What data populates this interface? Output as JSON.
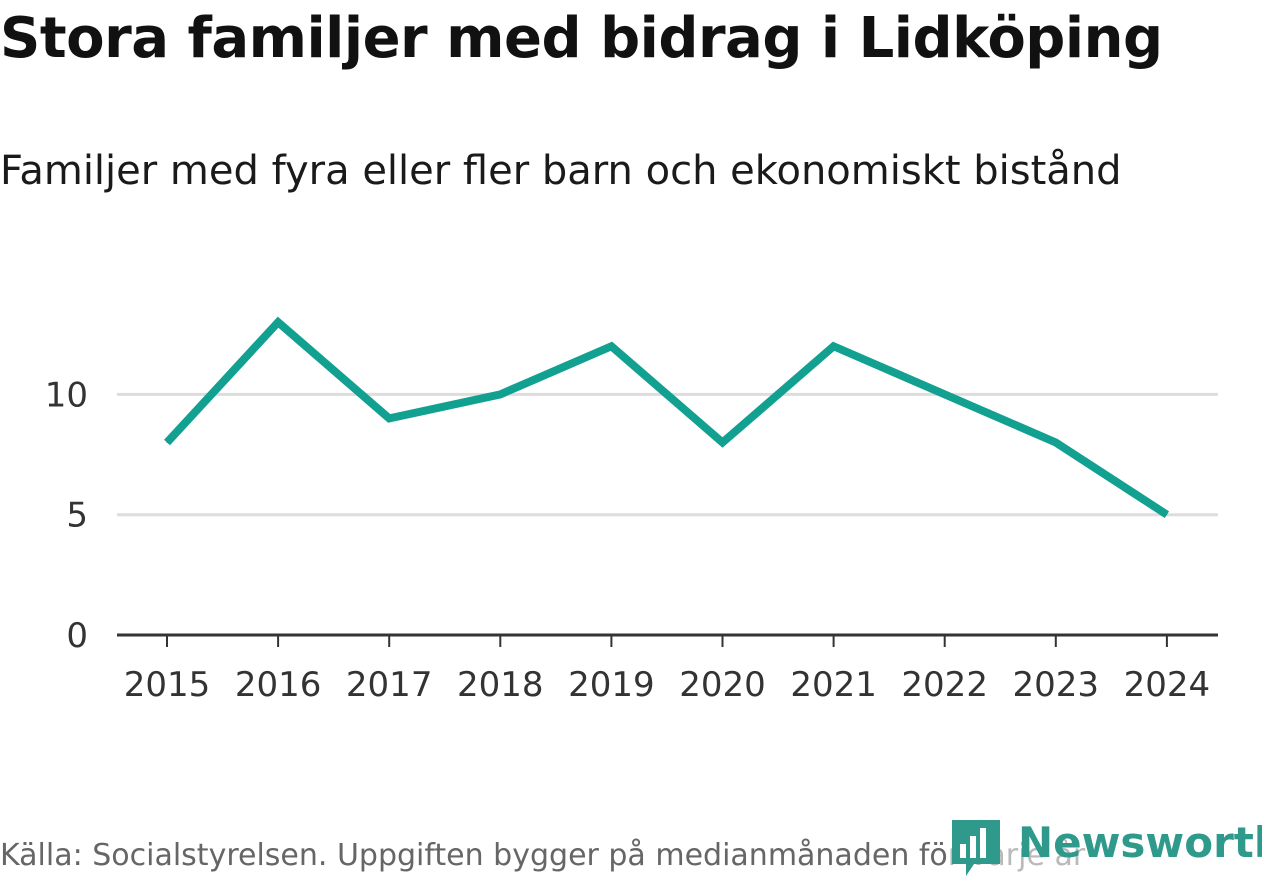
{
  "title": "Stora familjer med bidrag i Lidköping",
  "subtitle": "Familjer med fyra eller fler barn och ekonomiskt bistånd",
  "source": "Källa: Socialstyrelsen. Uppgiften bygger på medianmånaden för varje år",
  "brand": {
    "name": "Newsworthy",
    "color": "#2f9a8b",
    "icon": "bar-chart-speech-bubble-icon"
  },
  "chart_data": {
    "type": "line",
    "title": "Stora familjer med bidrag i Lidköping",
    "subtitle": "Familjer med fyra eller fler barn och ekonomiskt bistånd",
    "xlabel": "",
    "ylabel": "",
    "x": [
      "2015",
      "2016",
      "2017",
      "2018",
      "2019",
      "2020",
      "2021",
      "2022",
      "2023",
      "2024"
    ],
    "series": [
      {
        "name": "Familjer med fyra eller fler barn och ekonomiskt bistånd",
        "values": [
          8,
          13,
          9,
          10,
          12,
          8,
          12,
          10,
          8,
          5
        ],
        "color": "#12a091"
      }
    ],
    "ylim": [
      0,
      16
    ],
    "yticks": [
      0,
      5,
      10
    ],
    "grid": true,
    "legend": "none"
  }
}
